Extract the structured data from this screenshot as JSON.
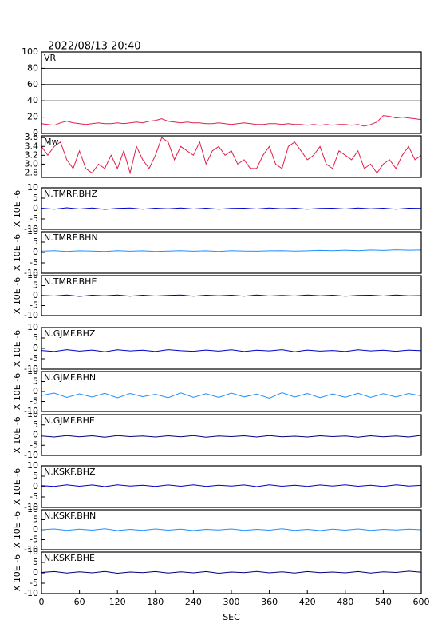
{
  "chart_data": [
    {
      "type": "line",
      "title": "2022/08/13 20:40",
      "label": "VR",
      "xlim": [
        0,
        600
      ],
      "ylim": [
        0,
        100
      ],
      "yticks": [
        0,
        20,
        40,
        60,
        80,
        100
      ],
      "grid": true,
      "x": [
        0,
        10,
        20,
        30,
        40,
        50,
        60,
        70,
        80,
        90,
        100,
        110,
        120,
        130,
        140,
        150,
        160,
        170,
        180,
        190,
        200,
        210,
        220,
        230,
        240,
        250,
        260,
        270,
        280,
        290,
        300,
        310,
        320,
        330,
        340,
        350,
        360,
        370,
        380,
        390,
        400,
        410,
        420,
        430,
        440,
        450,
        460,
        470,
        480,
        490,
        500,
        510,
        520,
        530,
        540,
        550,
        560,
        570,
        580,
        590,
        600
      ],
      "series": [
        {
          "color": "#e0204a",
          "values": [
            12,
            11,
            10,
            13,
            15,
            13,
            12,
            11,
            12,
            13,
            12,
            12,
            13,
            12,
            13,
            14,
            13,
            15,
            16,
            18,
            15,
            14,
            13,
            14,
            13,
            13,
            12,
            12,
            13,
            12,
            11,
            12,
            13,
            12,
            11,
            11,
            12,
            12,
            11,
            12,
            11,
            11,
            10,
            11,
            10,
            11,
            10,
            11,
            11,
            10,
            11,
            9,
            11,
            14,
            22,
            21,
            19,
            20,
            19,
            18,
            17
          ]
        }
      ]
    },
    {
      "type": "line",
      "label": "Mw",
      "xlim": [
        0,
        600
      ],
      "ylim": [
        2.7,
        3.64
      ],
      "yticks": [
        2.8,
        {
          "value": 3,
          "label": "3.0"
        },
        3.2,
        3.4,
        3.6
      ],
      "grid": false,
      "x": [
        0,
        10,
        20,
        30,
        40,
        50,
        60,
        70,
        80,
        90,
        100,
        110,
        120,
        130,
        140,
        150,
        160,
        170,
        180,
        190,
        200,
        210,
        220,
        230,
        240,
        250,
        260,
        270,
        280,
        290,
        300,
        310,
        320,
        330,
        340,
        350,
        360,
        370,
        380,
        390,
        400,
        410,
        420,
        430,
        440,
        450,
        460,
        470,
        480,
        490,
        500,
        510,
        520,
        530,
        540,
        550,
        560,
        570,
        580,
        590,
        600
      ],
      "series": [
        {
          "color": "#e0204a",
          "values": [
            3.4,
            3.2,
            3.4,
            3.5,
            3.1,
            2.9,
            3.3,
            2.9,
            2.8,
            3.0,
            2.9,
            3.2,
            2.9,
            3.3,
            2.8,
            3.4,
            3.1,
            2.9,
            3.2,
            3.6,
            3.5,
            3.1,
            3.4,
            3.3,
            3.2,
            3.5,
            3.0,
            3.3,
            3.4,
            3.2,
            3.3,
            3.0,
            3.1,
            2.9,
            2.9,
            3.2,
            3.4,
            3.0,
            2.9,
            3.4,
            3.5,
            3.3,
            3.1,
            3.2,
            3.4,
            3.0,
            2.9,
            3.3,
            3.2,
            3.1,
            3.3,
            2.9,
            3.0,
            2.8,
            3.0,
            3.1,
            2.9,
            3.2,
            3.4,
            3.1,
            3.2
          ]
        }
      ]
    },
    {
      "type": "line",
      "label": "N.TMRF.BHZ",
      "ylabel": "X 10E -6",
      "xlim": [
        0,
        600
      ],
      "ylim": [
        -10,
        10
      ],
      "yticks": [
        -10,
        -5,
        0,
        5,
        10
      ],
      "grid": false,
      "x": [
        0,
        20,
        40,
        60,
        80,
        100,
        120,
        140,
        160,
        180,
        200,
        220,
        240,
        260,
        280,
        300,
        320,
        340,
        360,
        380,
        400,
        420,
        440,
        460,
        480,
        500,
        520,
        540,
        560,
        580,
        600
      ],
      "series": [
        {
          "color": "#0000cc",
          "values": [
            0.2,
            -0.3,
            0.4,
            -0.2,
            0.3,
            -0.4,
            0.1,
            0.3,
            -0.3,
            0.2,
            -0.1,
            0.3,
            -0.2,
            0.2,
            -0.3,
            0.1,
            0.2,
            -0.2,
            0.3,
            -0.1,
            0.2,
            -0.3,
            0.1,
            0.2,
            -0.2,
            0.3,
            -0.1,
            0.2,
            -0.3,
            0.2,
            0.1
          ]
        }
      ]
    },
    {
      "type": "line",
      "label": "N.TMRF.BHN",
      "ylabel": "X 10E -6",
      "xlim": [
        0,
        600
      ],
      "ylim": [
        -10,
        10
      ],
      "yticks": [
        -10,
        -5,
        0,
        5,
        10
      ],
      "grid": false,
      "x": [
        0,
        20,
        40,
        60,
        80,
        100,
        120,
        140,
        160,
        180,
        200,
        220,
        240,
        260,
        280,
        300,
        320,
        340,
        360,
        380,
        400,
        420,
        440,
        460,
        480,
        500,
        520,
        540,
        560,
        580,
        600
      ],
      "series": [
        {
          "color": "#1e90ff",
          "values": [
            0.6,
            0.9,
            0.5,
            0.8,
            0.7,
            0.5,
            0.9,
            0.6,
            0.8,
            0.5,
            0.7,
            0.9,
            0.6,
            0.8,
            0.5,
            0.9,
            0.7,
            0.6,
            0.8,
            0.9,
            0.7,
            0.8,
            1.0,
            0.9,
            1.1,
            0.9,
            1.2,
            1.0,
            1.3,
            1.1,
            1.2
          ]
        }
      ]
    },
    {
      "type": "line",
      "label": "N.TMRF.BHE",
      "ylabel": "X 10E -6",
      "xlim": [
        0,
        600
      ],
      "ylim": [
        -10,
        10
      ],
      "yticks": [
        -10,
        -5,
        0,
        5,
        10
      ],
      "grid": false,
      "x": [
        0,
        20,
        40,
        60,
        80,
        100,
        120,
        140,
        160,
        180,
        200,
        220,
        240,
        260,
        280,
        300,
        320,
        340,
        360,
        380,
        400,
        420,
        440,
        460,
        480,
        500,
        520,
        540,
        560,
        580,
        600
      ],
      "series": [
        {
          "color": "#000080",
          "values": [
            0.1,
            -0.2,
            0.3,
            -0.4,
            0.2,
            -0.1,
            0.3,
            -0.3,
            0.2,
            -0.2,
            0.1,
            0.3,
            -0.3,
            0.2,
            -0.1,
            0.2,
            -0.3,
            0.3,
            -0.2,
            0.1,
            -0.2,
            0.3,
            -0.1,
            0.2,
            -0.3,
            0.1,
            0.2,
            -0.2,
            0.3,
            -0.1,
            0.0
          ]
        }
      ]
    },
    {
      "type": "line",
      "label": "N.GJMF.BHZ",
      "ylabel": "X 10E -6",
      "xlim": [
        0,
        600
      ],
      "ylim": [
        -10,
        10
      ],
      "yticks": [
        -10,
        -5,
        0,
        5,
        10
      ],
      "grid": false,
      "x": [
        0,
        20,
        40,
        60,
        80,
        100,
        120,
        140,
        160,
        180,
        200,
        220,
        240,
        260,
        280,
        300,
        320,
        340,
        360,
        380,
        400,
        420,
        440,
        460,
        480,
        500,
        520,
        540,
        560,
        580,
        600
      ],
      "series": [
        {
          "color": "#0000cc",
          "values": [
            -1.0,
            -1.5,
            -0.6,
            -1.3,
            -0.8,
            -1.6,
            -0.7,
            -1.2,
            -0.9,
            -1.5,
            -0.6,
            -1.1,
            -1.4,
            -0.8,
            -1.3,
            -0.7,
            -1.5,
            -0.9,
            -1.2,
            -0.6,
            -1.6,
            -0.8,
            -1.3,
            -1.0,
            -1.5,
            -0.7,
            -1.2,
            -0.9,
            -1.4,
            -0.8,
            -1.1
          ]
        }
      ]
    },
    {
      "type": "line",
      "label": "N.GJMF.BHN",
      "ylabel": "X 10E -6",
      "xlim": [
        0,
        600
      ],
      "ylim": [
        -10,
        10
      ],
      "yticks": [
        -10,
        -5,
        0,
        5,
        10
      ],
      "grid": false,
      "x": [
        0,
        20,
        40,
        60,
        80,
        100,
        120,
        140,
        160,
        180,
        200,
        220,
        240,
        260,
        280,
        300,
        320,
        340,
        360,
        380,
        400,
        420,
        440,
        460,
        480,
        500,
        520,
        540,
        560,
        580,
        600
      ],
      "series": [
        {
          "color": "#1e90ff",
          "values": [
            -2.0,
            -0.8,
            -3.0,
            -1.2,
            -2.8,
            -0.9,
            -3.2,
            -1.0,
            -2.6,
            -1.4,
            -3.1,
            -0.7,
            -2.9,
            -1.1,
            -3.0,
            -0.8,
            -2.7,
            -1.3,
            -3.4,
            -0.6,
            -2.8,
            -1.0,
            -3.1,
            -1.2,
            -2.9,
            -0.9,
            -3.0,
            -1.1,
            -2.7,
            -1.0,
            -2.2
          ]
        }
      ]
    },
    {
      "type": "line",
      "label": "N.GJMF.BHE",
      "ylabel": "X 10E -6",
      "xlim": [
        0,
        600
      ],
      "ylim": [
        -10,
        10
      ],
      "yticks": [
        -10,
        -5,
        0,
        5,
        10
      ],
      "grid": false,
      "x": [
        0,
        20,
        40,
        60,
        80,
        100,
        120,
        140,
        160,
        180,
        200,
        220,
        240,
        260,
        280,
        300,
        320,
        340,
        360,
        380,
        400,
        420,
        440,
        460,
        480,
        500,
        520,
        540,
        560,
        580,
        600
      ],
      "series": [
        {
          "color": "#000080",
          "values": [
            -0.5,
            -1.0,
            -0.3,
            -0.9,
            -0.4,
            -1.1,
            -0.3,
            -0.8,
            -0.5,
            -1.0,
            -0.4,
            -0.9,
            -0.3,
            -1.1,
            -0.5,
            -0.8,
            -0.4,
            -1.0,
            -0.3,
            -0.9,
            -0.6,
            -1.0,
            -0.4,
            -0.8,
            -0.5,
            -1.1,
            -0.4,
            -0.9,
            -0.5,
            -1.0,
            -0.2
          ]
        }
      ]
    },
    {
      "type": "line",
      "label": "N.KSKF.BHZ",
      "ylabel": "X 10E -6",
      "xlim": [
        0,
        600
      ],
      "ylim": [
        -10,
        10
      ],
      "yticks": [
        -10,
        -5,
        0,
        5,
        10
      ],
      "grid": false,
      "x": [
        0,
        20,
        40,
        60,
        80,
        100,
        120,
        140,
        160,
        180,
        200,
        220,
        240,
        260,
        280,
        300,
        320,
        340,
        360,
        380,
        400,
        420,
        440,
        460,
        480,
        500,
        520,
        540,
        560,
        580,
        600
      ],
      "series": [
        {
          "color": "#0000cc",
          "values": [
            0.5,
            0.1,
            0.9,
            0.2,
            0.8,
            0.0,
            0.9,
            0.3,
            0.7,
            0.1,
            0.8,
            0.2,
            0.9,
            0.1,
            0.7,
            0.3,
            0.8,
            0.0,
            0.9,
            0.2,
            0.7,
            0.1,
            0.8,
            0.3,
            0.9,
            0.2,
            0.7,
            0.1,
            0.9,
            0.3,
            0.6
          ]
        }
      ]
    },
    {
      "type": "line",
      "label": "N.KSKF.BHN",
      "ylabel": "X 10E -6",
      "xlim": [
        0,
        600
      ],
      "ylim": [
        -10,
        10
      ],
      "yticks": [
        -10,
        -5,
        0,
        5,
        10
      ],
      "grid": false,
      "x": [
        0,
        20,
        40,
        60,
        80,
        100,
        120,
        140,
        160,
        180,
        200,
        220,
        240,
        260,
        280,
        300,
        320,
        340,
        360,
        380,
        400,
        420,
        440,
        460,
        480,
        500,
        520,
        540,
        560,
        580,
        600
      ],
      "series": [
        {
          "color": "#1e90ff",
          "values": [
            0.0,
            0.4,
            -0.3,
            0.3,
            -0.2,
            0.5,
            -0.4,
            0.2,
            -0.3,
            0.4,
            -0.2,
            0.3,
            -0.4,
            0.2,
            -0.1,
            0.4,
            -0.3,
            0.2,
            -0.2,
            0.5,
            -0.3,
            0.2,
            -0.4,
            0.3,
            -0.2,
            0.4,
            -0.3,
            0.2,
            -0.1,
            0.3,
            0.0
          ]
        }
      ]
    },
    {
      "type": "line",
      "label": "N.KSKF.BHE",
      "ylabel": "X 10E -6",
      "xlim": [
        0,
        600
      ],
      "ylim": [
        -10,
        10
      ],
      "yticks": [
        -10,
        -5,
        0,
        5,
        10
      ],
      "grid": false,
      "xlabel": "SEC",
      "xticks": [
        0,
        60,
        120,
        180,
        240,
        300,
        360,
        420,
        480,
        540,
        600
      ],
      "x": [
        0,
        20,
        40,
        60,
        80,
        100,
        120,
        140,
        160,
        180,
        200,
        220,
        240,
        260,
        280,
        300,
        320,
        340,
        360,
        380,
        400,
        420,
        440,
        460,
        480,
        500,
        520,
        540,
        560,
        580,
        600
      ],
      "series": [
        {
          "color": "#000080",
          "values": [
            0.2,
            0.6,
            -0.1,
            0.5,
            0.0,
            0.7,
            -0.2,
            0.4,
            0.1,
            0.6,
            -0.1,
            0.5,
            0.0,
            0.6,
            -0.2,
            0.4,
            0.1,
            0.7,
            0.0,
            0.5,
            -0.1,
            0.6,
            0.1,
            0.4,
            0.0,
            0.6,
            -0.1,
            0.5,
            0.2,
            0.8,
            0.3
          ]
        }
      ]
    }
  ]
}
